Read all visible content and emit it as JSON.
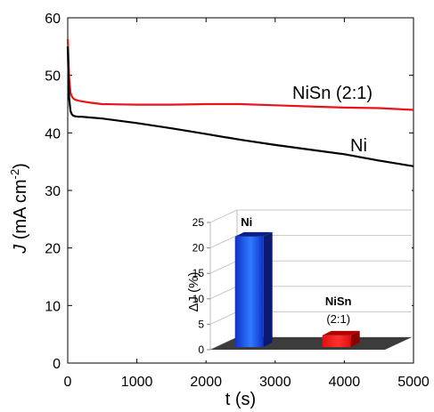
{
  "chart_data": [
    {
      "type": "line",
      "xlabel": "t (s)",
      "ylabel_parts": [
        "J",
        " (mA cm",
        "-2",
        ")"
      ],
      "xlim": [
        0,
        5000
      ],
      "ylim": [
        0,
        60
      ],
      "xticks": [
        0,
        1000,
        2000,
        3000,
        4000,
        5000
      ],
      "yticks": [
        0,
        10,
        20,
        30,
        40,
        50,
        60
      ],
      "grid": false,
      "series": [
        {
          "name": "NiSn (2:1)",
          "color": "#e8141a",
          "x": [
            0,
            10,
            20,
            40,
            60,
            80,
            100,
            150,
            200,
            300,
            500,
            1000,
            1500,
            2000,
            2500,
            3000,
            3500,
            4000,
            4500,
            5000
          ],
          "y": [
            56.3,
            53.0,
            49.5,
            47.0,
            46.3,
            46.0,
            45.8,
            45.6,
            45.5,
            45.3,
            45.0,
            44.9,
            44.9,
            45.0,
            45.0,
            44.8,
            44.6,
            44.4,
            44.3,
            44.0
          ]
        },
        {
          "name": "Ni",
          "color": "#000000",
          "x": [
            0,
            10,
            20,
            40,
            60,
            80,
            100,
            150,
            200,
            300,
            500,
            1000,
            1500,
            2000,
            2500,
            3000,
            3500,
            4000,
            4500,
            5000
          ],
          "y": [
            55.0,
            50.0,
            46.0,
            43.8,
            43.2,
            43.0,
            42.9,
            42.8,
            42.8,
            42.7,
            42.5,
            41.7,
            40.8,
            39.8,
            38.8,
            37.9,
            37.1,
            36.3,
            35.2,
            34.2
          ]
        }
      ]
    },
    {
      "type": "bar",
      "ylabel": "ΔJ (%)",
      "ylim": [
        0,
        25
      ],
      "yticks": [
        0,
        5,
        10,
        15,
        20,
        25
      ],
      "grid": true,
      "categories": [
        "Ni",
        "NiSn (2:1)"
      ],
      "values": [
        21.7,
        2.3
      ],
      "bar_labels": [
        [
          "Ni"
        ],
        [
          "NiSn",
          "(2:1)"
        ]
      ],
      "colors": [
        "#1030c8",
        "#e01010"
      ]
    }
  ]
}
